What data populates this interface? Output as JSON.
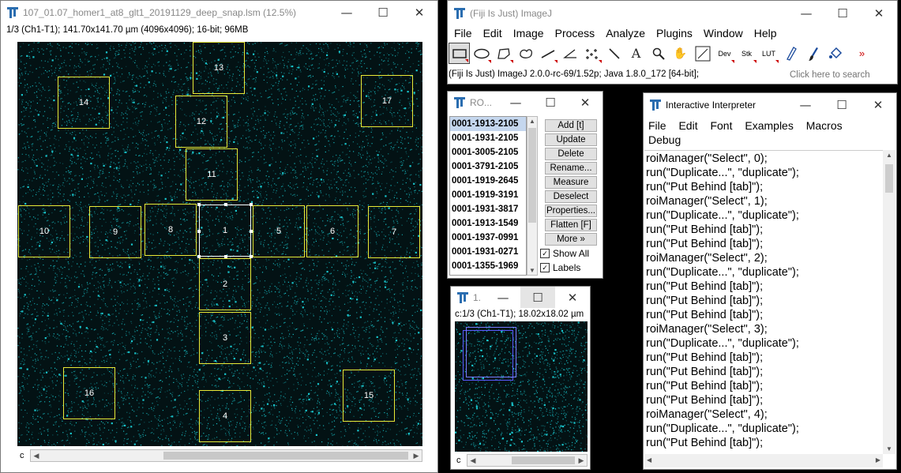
{
  "image_window": {
    "title": "107_01.07_homer1_at8_glt1_20191129_deep_snap.lsm (12.5%)",
    "info": "1/3 (Ch1-T1); 141.70x141.70 µm (4096x4096); 16-bit; 96MB",
    "channel_label": "c",
    "rois": [
      {
        "label": "13"
      },
      {
        "label": "14"
      },
      {
        "label": "17"
      },
      {
        "label": "12"
      },
      {
        "label": "11"
      },
      {
        "label": "10"
      },
      {
        "label": "9"
      },
      {
        "label": "8"
      },
      {
        "label": "1"
      },
      {
        "label": "5"
      },
      {
        "label": "6"
      },
      {
        "label": "7"
      },
      {
        "label": "2"
      },
      {
        "label": "3"
      },
      {
        "label": "16"
      },
      {
        "label": "15"
      },
      {
        "label": "4"
      }
    ]
  },
  "imagej": {
    "title": "(Fiji Is Just) ImageJ",
    "menus": [
      "File",
      "Edit",
      "Image",
      "Process",
      "Analyze",
      "Plugins",
      "Window",
      "Help"
    ],
    "tools": [
      "rectangle",
      "oval",
      "polygon",
      "freehand",
      "line",
      "angle",
      "multipoint",
      "wand",
      "text",
      "magnifier",
      "hand",
      "color-picker",
      "Dev",
      "Stk",
      "LUT",
      "pencil",
      "brush",
      "flood-fill",
      ">>"
    ],
    "status": "(Fiji Is Just) ImageJ 2.0.0-rc-69/1.52p; Java 1.8.0_172 [64-bit];",
    "search_placeholder": "Click here to search"
  },
  "roi_manager": {
    "title": "RO...",
    "items": [
      "0001-1913-2105",
      "0001-1931-2105",
      "0001-3005-2105",
      "0001-3791-2105",
      "0001-1919-2645",
      "0001-1919-3191",
      "0001-1931-3817",
      "0001-1913-1549",
      "0001-1937-0991",
      "0001-1931-0271",
      "0001-1355-1969"
    ],
    "buttons": [
      "Add [t]",
      "Update",
      "Delete",
      "Rename...",
      "Measure",
      "Deselect",
      "Properties...",
      "Flatten [F]",
      "More »"
    ],
    "show_all": "Show All",
    "labels": "Labels"
  },
  "dup_window": {
    "title": "1.",
    "info": "c:1/3 (Ch1-T1); 18.02x18.02 µm",
    "channel_label": "c"
  },
  "interpreter": {
    "title": "Interactive Interpreter",
    "menus": [
      "File",
      "Edit",
      "Font",
      "Examples",
      "Macros",
      "Debug"
    ],
    "code": [
      "roiManager(\"Select\", 0);",
      "run(\"Duplicate...\", \"duplicate\");",
      "run(\"Put Behind [tab]\");",
      "roiManager(\"Select\", 1);",
      "run(\"Duplicate...\", \"duplicate\");",
      "run(\"Put Behind [tab]\");",
      "run(\"Put Behind [tab]\");",
      "roiManager(\"Select\", 2);",
      "run(\"Duplicate...\", \"duplicate\");",
      "run(\"Put Behind [tab]\");",
      "run(\"Put Behind [tab]\");",
      "run(\"Put Behind [tab]\");",
      "roiManager(\"Select\", 3);",
      "run(\"Duplicate...\", \"duplicate\");",
      "run(\"Put Behind [tab]\");",
      "run(\"Put Behind [tab]\");",
      "run(\"Put Behind [tab]\");",
      "run(\"Put Behind [tab]\");",
      "roiManager(\"Select\", 4);",
      "run(\"Duplicate...\", \"duplicate\");",
      "run(\"Put Behind [tab]\");"
    ]
  },
  "colors": {
    "roi": "#e9e937",
    "cyan": "#19c8cf",
    "fiji_blue": "#2a6db0"
  }
}
